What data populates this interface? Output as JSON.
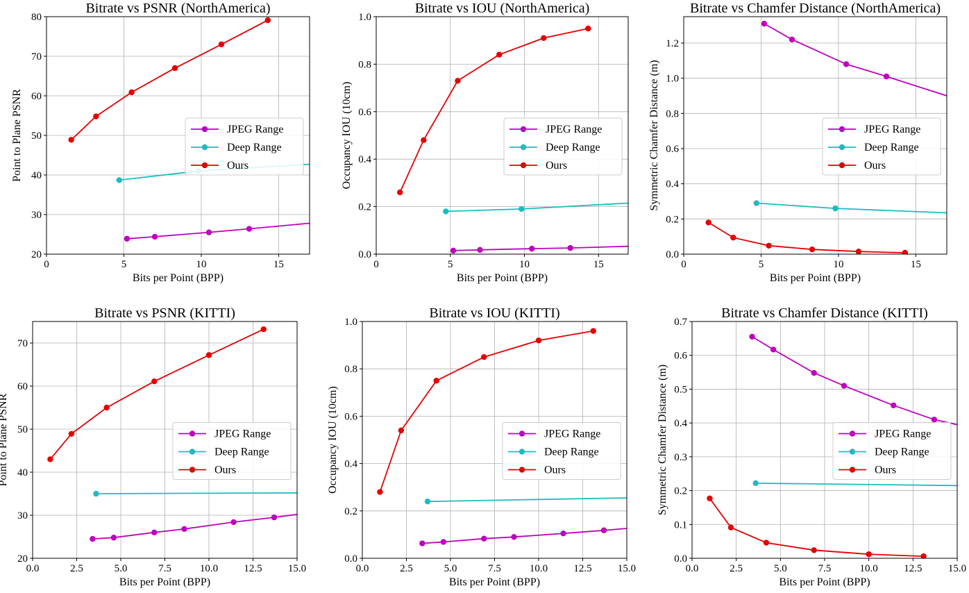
{
  "chart_data": [
    {
      "type": "line",
      "title": "Bitrate vs PSNR (NorthAmerica)",
      "xlabel": "Bits per Point (BPP)",
      "ylabel": "Point to Plane PSNR",
      "xlim": [
        0,
        17
      ],
      "ylim": [
        20,
        80
      ],
      "xticks": [
        0,
        5,
        10,
        15
      ],
      "xtick_labels": [
        "0",
        "5",
        "10",
        "15"
      ],
      "yticks": [
        20,
        30,
        40,
        50,
        60,
        70,
        80
      ],
      "ytick_labels": [
        "20",
        "30",
        "40",
        "50",
        "60",
        "70",
        "80"
      ],
      "grid": true,
      "legend": "center-right",
      "series": [
        {
          "name": "JPEG Range",
          "color": "#bf00bf",
          "x": [
            5.2,
            7.0,
            10.5,
            13.1,
            17.0
          ],
          "y": [
            23.9,
            24.4,
            25.5,
            26.4,
            27.8
          ],
          "markers": [
            true,
            true,
            true,
            true,
            false
          ]
        },
        {
          "name": "Deep Range",
          "color": "#17bfbf",
          "x": [
            4.7,
            9.8,
            17.0
          ],
          "y": [
            38.7,
            41.0,
            42.7
          ],
          "markers": [
            true,
            true,
            false
          ]
        },
        {
          "name": "Ours",
          "color": "#e60000",
          "x": [
            1.6,
            3.2,
            5.5,
            8.3,
            11.3,
            14.3
          ],
          "y": [
            48.9,
            54.8,
            60.9,
            67.0,
            73.0,
            79.1
          ],
          "markers": [
            true,
            true,
            true,
            true,
            true,
            true
          ]
        }
      ]
    },
    {
      "type": "line",
      "title": "Bitrate vs IOU (NorthAmerica)",
      "xlabel": "Bits per Point (BPP)",
      "ylabel": "Occupancy IOU (10cm)",
      "xlim": [
        0,
        17
      ],
      "ylim": [
        0,
        1
      ],
      "xticks": [
        0,
        5,
        10,
        15
      ],
      "xtick_labels": [
        "0",
        "5",
        "10",
        "15"
      ],
      "yticks": [
        0,
        0.2,
        0.4,
        0.6,
        0.8,
        1.0
      ],
      "ytick_labels": [
        "0.0",
        "0.2",
        "0.4",
        "0.6",
        "0.8",
        "1.0"
      ],
      "grid": true,
      "legend": "center-right",
      "series": [
        {
          "name": "JPEG Range",
          "color": "#bf00bf",
          "x": [
            5.2,
            7.0,
            10.5,
            13.1,
            17.0
          ],
          "y": [
            0.015,
            0.018,
            0.023,
            0.026,
            0.033
          ],
          "markers": [
            true,
            true,
            true,
            true,
            false
          ]
        },
        {
          "name": "Deep Range",
          "color": "#17bfbf",
          "x": [
            4.7,
            9.8,
            17.0
          ],
          "y": [
            0.18,
            0.19,
            0.215
          ],
          "markers": [
            true,
            true,
            false
          ]
        },
        {
          "name": "Ours",
          "color": "#e60000",
          "x": [
            1.6,
            3.2,
            5.5,
            8.3,
            11.3,
            14.3
          ],
          "y": [
            0.26,
            0.48,
            0.73,
            0.84,
            0.91,
            0.95
          ],
          "markers": [
            true,
            true,
            true,
            true,
            true,
            true
          ]
        }
      ]
    },
    {
      "type": "line",
      "title": "Bitrate vs Chamfer Distance (NorthAmerica)",
      "xlabel": "Bits per Point (BPP)",
      "ylabel": "Symmetric Chamfer Distance (m)",
      "xlim": [
        0,
        17
      ],
      "ylim": [
        0,
        1.35
      ],
      "xticks": [
        0,
        5,
        10,
        15
      ],
      "xtick_labels": [
        "0",
        "5",
        "10",
        "15"
      ],
      "yticks": [
        0,
        0.2,
        0.4,
        0.6,
        0.8,
        1.0,
        1.2
      ],
      "ytick_labels": [
        "0.0",
        "0.2",
        "0.4",
        "0.6",
        "0.8",
        "1.0",
        "1.2"
      ],
      "grid": true,
      "legend": "center-right",
      "series": [
        {
          "name": "JPEG Range",
          "color": "#bf00bf",
          "x": [
            5.2,
            7.0,
            10.5,
            13.1,
            17.0
          ],
          "y": [
            1.31,
            1.22,
            1.08,
            1.01,
            0.9
          ],
          "markers": [
            true,
            true,
            true,
            true,
            false
          ]
        },
        {
          "name": "Deep Range",
          "color": "#17bfbf",
          "x": [
            4.7,
            9.8,
            17.0
          ],
          "y": [
            0.29,
            0.26,
            0.235
          ],
          "markers": [
            true,
            true,
            false
          ]
        },
        {
          "name": "Ours",
          "color": "#e60000",
          "x": [
            1.6,
            3.2,
            5.5,
            8.3,
            11.3,
            14.3
          ],
          "y": [
            0.18,
            0.094,
            0.048,
            0.027,
            0.015,
            0.008
          ],
          "markers": [
            true,
            true,
            true,
            true,
            true,
            true
          ]
        }
      ]
    },
    {
      "type": "line",
      "title": "Bitrate vs PSNR (KITTI)",
      "xlabel": "Bits per Point (BPP)",
      "ylabel": "Point to Plane PSNR",
      "xlim": [
        0,
        15
      ],
      "ylim": [
        20,
        75
      ],
      "xticks": [
        0,
        2.5,
        5,
        7.5,
        10,
        12.5,
        15
      ],
      "xtick_labels": [
        "0.0",
        "2.5",
        "5.0",
        "7.5",
        "10.0",
        "12.5",
        "15.0"
      ],
      "yticks": [
        20,
        30,
        40,
        50,
        60,
        70
      ],
      "ytick_labels": [
        "20",
        "30",
        "40",
        "50",
        "60",
        "70"
      ],
      "grid": true,
      "legend": "center-right",
      "series": [
        {
          "name": "JPEG Range",
          "color": "#bf00bf",
          "x": [
            3.4,
            4.6,
            6.9,
            8.6,
            11.4,
            13.7,
            15.0
          ],
          "y": [
            24.5,
            24.8,
            26.0,
            26.8,
            28.4,
            29.5,
            30.2
          ],
          "markers": [
            true,
            true,
            true,
            true,
            true,
            true,
            false
          ]
        },
        {
          "name": "Deep Range",
          "color": "#17bfbf",
          "x": [
            3.6,
            15.0
          ],
          "y": [
            35.0,
            35.2
          ],
          "markers": [
            true,
            false
          ]
        },
        {
          "name": "Ours",
          "color": "#e60000",
          "x": [
            1.0,
            2.2,
            4.2,
            6.9,
            10.0,
            13.1
          ],
          "y": [
            43.0,
            48.9,
            55.0,
            61.1,
            67.2,
            73.2
          ],
          "markers": [
            true,
            true,
            true,
            true,
            true,
            true
          ]
        }
      ]
    },
    {
      "type": "line",
      "title": "Bitrate vs IOU (KITTI)",
      "xlabel": "Bits per Point (BPP)",
      "ylabel": "Occupancy IOU (10cm)",
      "xlim": [
        0,
        15
      ],
      "ylim": [
        0,
        1
      ],
      "xticks": [
        0,
        2.5,
        5,
        7.5,
        10,
        12.5,
        15
      ],
      "xtick_labels": [
        "0.0",
        "2.5",
        "5.0",
        "7.5",
        "10.0",
        "12.5",
        "15.0"
      ],
      "yticks": [
        0,
        0.2,
        0.4,
        0.6,
        0.8,
        1.0
      ],
      "ytick_labels": [
        "0.0",
        "0.2",
        "0.4",
        "0.6",
        "0.8",
        "1.0"
      ],
      "grid": true,
      "legend": "center-right",
      "series": [
        {
          "name": "JPEG Range",
          "color": "#bf00bf",
          "x": [
            3.4,
            4.6,
            6.9,
            8.6,
            11.4,
            13.7,
            15.0
          ],
          "y": [
            0.063,
            0.069,
            0.083,
            0.09,
            0.105,
            0.118,
            0.126
          ],
          "markers": [
            true,
            true,
            true,
            true,
            true,
            true,
            false
          ]
        },
        {
          "name": "Deep Range",
          "color": "#17bfbf",
          "x": [
            3.7,
            15.0
          ],
          "y": [
            0.24,
            0.255
          ],
          "markers": [
            true,
            false
          ]
        },
        {
          "name": "Ours",
          "color": "#e60000",
          "x": [
            1.0,
            2.2,
            4.2,
            6.9,
            10.0,
            13.1
          ],
          "y": [
            0.28,
            0.54,
            0.75,
            0.85,
            0.92,
            0.96
          ],
          "markers": [
            true,
            true,
            true,
            true,
            true,
            true
          ]
        }
      ]
    },
    {
      "type": "line",
      "title": "Bitrate vs Chamfer Distance (KITTI)",
      "xlabel": "Bits per Point (BPP)",
      "ylabel": "Symmetric Chamfer Distance (m)",
      "xlim": [
        0,
        15
      ],
      "ylim": [
        0,
        0.7
      ],
      "xticks": [
        0,
        2.5,
        5,
        7.5,
        10,
        12.5,
        15
      ],
      "xtick_labels": [
        "0.0",
        "2.5",
        "5.0",
        "7.5",
        "10.0",
        "12.5",
        "15.0"
      ],
      "yticks": [
        0,
        0.1,
        0.2,
        0.3,
        0.4,
        0.5,
        0.6,
        0.7
      ],
      "ytick_labels": [
        "0.0",
        "0.1",
        "0.2",
        "0.3",
        "0.4",
        "0.5",
        "0.6",
        "0.7"
      ],
      "grid": true,
      "legend": "center-right",
      "series": [
        {
          "name": "JPEG Range",
          "color": "#bf00bf",
          "x": [
            3.4,
            4.6,
            6.9,
            8.6,
            11.4,
            13.7,
            15.0
          ],
          "y": [
            0.655,
            0.617,
            0.548,
            0.51,
            0.452,
            0.41,
            0.395
          ],
          "markers": [
            true,
            true,
            true,
            true,
            true,
            true,
            false
          ]
        },
        {
          "name": "Deep Range",
          "color": "#17bfbf",
          "x": [
            3.6,
            15.0
          ],
          "y": [
            0.222,
            0.215
          ],
          "markers": [
            true,
            false
          ]
        },
        {
          "name": "Ours",
          "color": "#e60000",
          "x": [
            1.0,
            2.2,
            4.2,
            6.9,
            10.0,
            13.1
          ],
          "y": [
            0.177,
            0.091,
            0.046,
            0.024,
            0.012,
            0.006
          ],
          "markers": [
            true,
            true,
            true,
            true,
            true,
            true
          ]
        }
      ]
    }
  ]
}
